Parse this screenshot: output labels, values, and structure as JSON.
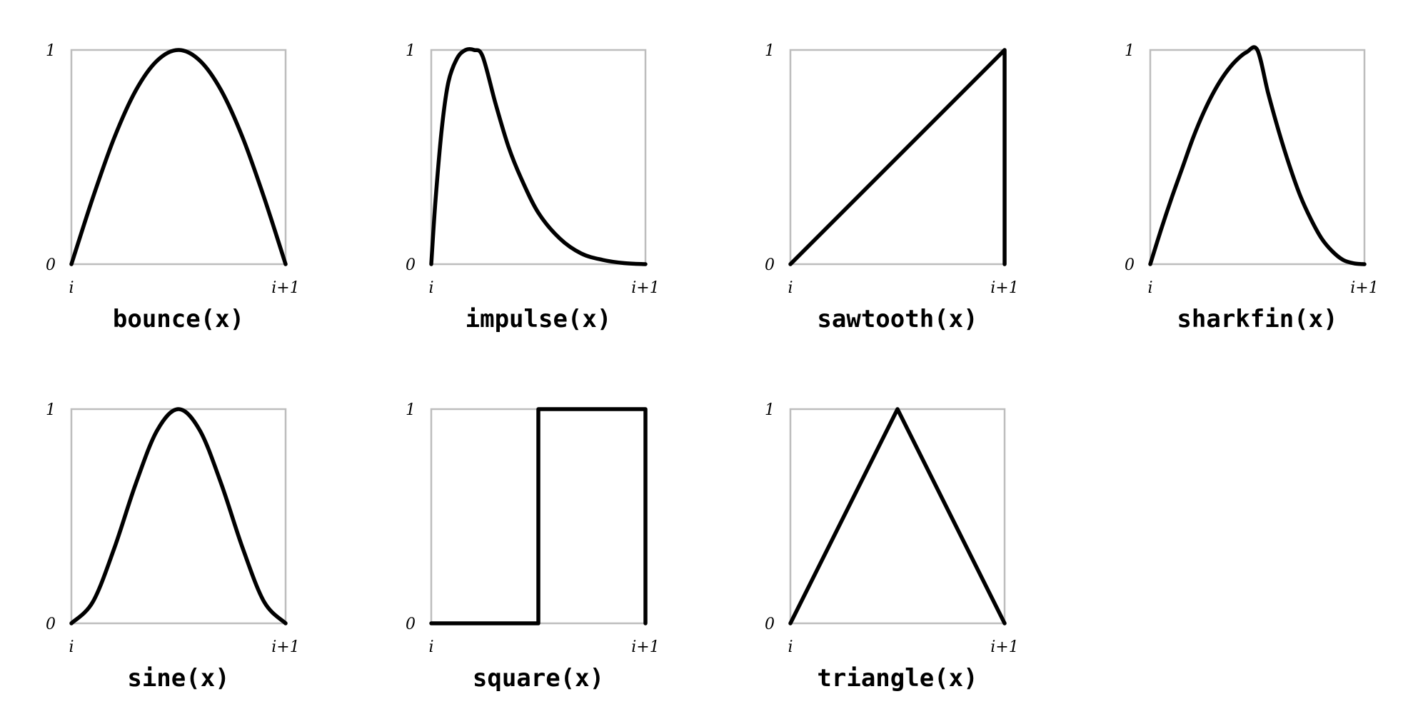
{
  "chart_data": [
    {
      "type": "line",
      "title": "bounce(x)",
      "xticks": [
        "i",
        "i+1"
      ],
      "yticks": [
        "0",
        "1"
      ],
      "xlim": [
        0,
        1
      ],
      "ylim": [
        0,
        1
      ],
      "grid": false,
      "x": [
        0,
        0.1,
        0.2,
        0.3,
        0.4,
        0.5,
        0.6,
        0.7,
        0.8,
        0.9,
        1
      ],
      "y": [
        0,
        0.31,
        0.59,
        0.81,
        0.95,
        1,
        0.95,
        0.81,
        0.59,
        0.31,
        0
      ]
    },
    {
      "type": "line",
      "title": "impulse(x)",
      "xticks": [
        "i",
        "i+1"
      ],
      "yticks": [
        "0",
        "1"
      ],
      "xlim": [
        0,
        1
      ],
      "ylim": [
        0,
        1
      ],
      "grid": false,
      "x": [
        0,
        0.02,
        0.05,
        0.08,
        0.12,
        0.16,
        0.2,
        0.24,
        0.3,
        0.36,
        0.42,
        0.5,
        0.6,
        0.7,
        0.8,
        0.9,
        1
      ],
      "y": [
        0,
        0.3,
        0.64,
        0.85,
        0.96,
        1,
        1,
        0.97,
        0.75,
        0.55,
        0.4,
        0.24,
        0.12,
        0.05,
        0.02,
        0.005,
        0
      ]
    },
    {
      "type": "line",
      "title": "sawtooth(x)",
      "xticks": [
        "i",
        "i+1"
      ],
      "yticks": [
        "0",
        "1"
      ],
      "xlim": [
        0,
        1
      ],
      "ylim": [
        0,
        1
      ],
      "grid": false,
      "x": [
        0,
        1,
        1
      ],
      "y": [
        0,
        1,
        0
      ]
    },
    {
      "type": "line",
      "title": "sharkfin(x)",
      "xticks": [
        "i",
        "i+1"
      ],
      "yticks": [
        "0",
        "1"
      ],
      "xlim": [
        0,
        1
      ],
      "ylim": [
        0,
        1
      ],
      "grid": false,
      "x": [
        0,
        0.05,
        0.1,
        0.15,
        0.2,
        0.25,
        0.3,
        0.35,
        0.4,
        0.45,
        0.5,
        0.55,
        0.6,
        0.65,
        0.7,
        0.75,
        0.8,
        0.85,
        0.9,
        0.95,
        1
      ],
      "y": [
        0,
        0.16,
        0.31,
        0.45,
        0.59,
        0.71,
        0.81,
        0.89,
        0.95,
        0.99,
        1,
        0.8,
        0.62,
        0.46,
        0.32,
        0.21,
        0.12,
        0.06,
        0.02,
        0.004,
        0
      ]
    },
    {
      "type": "line",
      "title": "sine(x)",
      "xticks": [
        "i",
        "i+1"
      ],
      "yticks": [
        "0",
        "1"
      ],
      "xlim": [
        0,
        1
      ],
      "ylim": [
        0,
        1
      ],
      "grid": false,
      "x": [
        0,
        0.1,
        0.2,
        0.3,
        0.4,
        0.5,
        0.6,
        0.7,
        0.8,
        0.9,
        1
      ],
      "y": [
        0,
        0.1,
        0.35,
        0.65,
        0.9,
        1,
        0.9,
        0.65,
        0.35,
        0.1,
        0
      ]
    },
    {
      "type": "line",
      "title": "square(x)",
      "xticks": [
        "i",
        "i+1"
      ],
      "yticks": [
        "0",
        "1"
      ],
      "xlim": [
        0,
        1
      ],
      "ylim": [
        0,
        1
      ],
      "grid": false,
      "x": [
        0,
        0.5,
        0.5,
        1,
        1
      ],
      "y": [
        0,
        0,
        1,
        1,
        0
      ]
    },
    {
      "type": "line",
      "title": "triangle(x)",
      "xticks": [
        "i",
        "i+1"
      ],
      "yticks": [
        "0",
        "1"
      ],
      "xlim": [
        0,
        1
      ],
      "ylim": [
        0,
        1
      ],
      "grid": false,
      "x": [
        0,
        0.5,
        1
      ],
      "y": [
        0,
        1,
        0
      ]
    }
  ]
}
